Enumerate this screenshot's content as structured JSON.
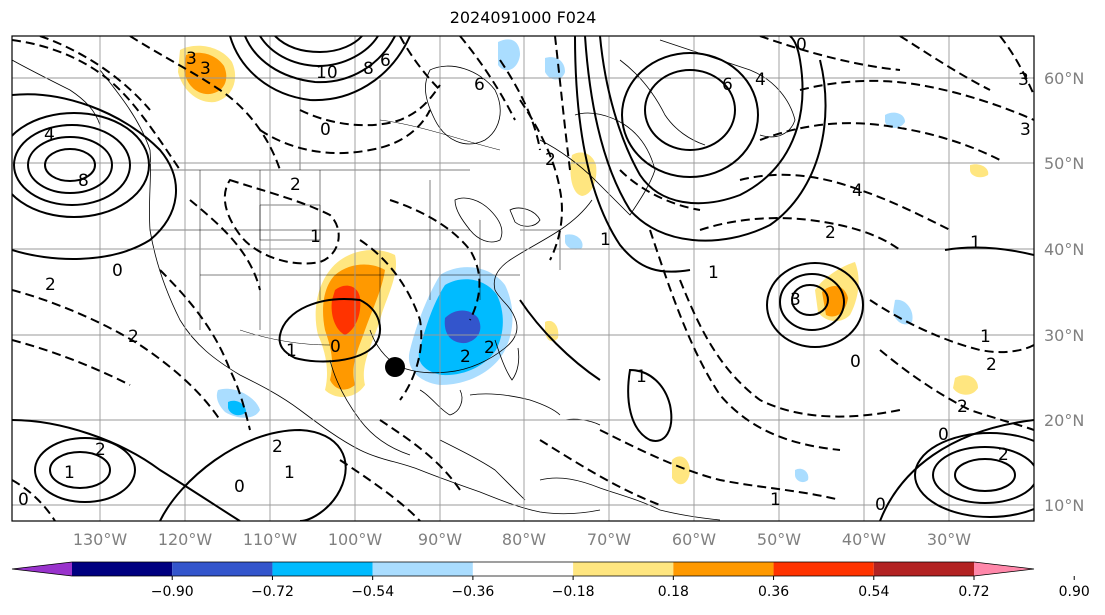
{
  "title": "2024091000 F024",
  "lat_labels": [
    "60°N",
    "50°N",
    "40°N",
    "30°N",
    "20°N",
    "10°N"
  ],
  "lon_labels": [
    "130°W",
    "120°W",
    "110°W",
    "100°W",
    "90°W",
    "80°W",
    "70°W",
    "60°W",
    "50°W",
    "40°W",
    "30°W"
  ],
  "colorbar": {
    "colors": [
      "#9933cc",
      "#000080",
      "#3355cc",
      "#00bbff",
      "#aaddff",
      "#ffffff",
      "#ffe680",
      "#ff9900",
      "#ff3300",
      "#b22222",
      "#ff88aa"
    ],
    "tick_labels": [
      "−0.90",
      "−0.72",
      "−0.54",
      "−0.36",
      "−0.18",
      "0.18",
      "0.36",
      "0.54",
      "0.72",
      "0.90"
    ]
  },
  "contour_labels": [
    "3",
    "3",
    "10",
    "8",
    "6",
    "6",
    "6",
    "4",
    "0",
    "0",
    "2",
    "3",
    "8",
    "4",
    "2",
    "1",
    "0",
    "2",
    "2",
    "1",
    "2",
    "0",
    "2",
    "1",
    "0",
    "1",
    "2",
    "2",
    "1",
    "0",
    "3",
    "2",
    "1",
    "0",
    "1",
    "2",
    "1",
    "0",
    "3",
    "1",
    "0",
    "2",
    "4",
    "2",
    "1"
  ],
  "marker": {
    "label": "storm-center"
  }
}
